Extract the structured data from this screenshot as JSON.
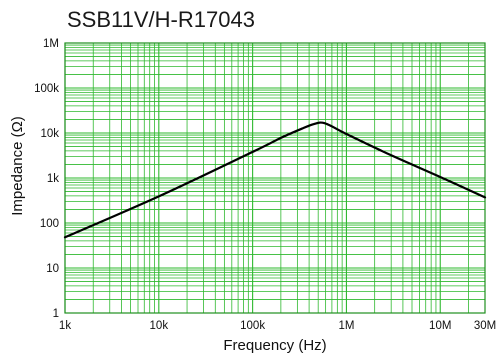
{
  "chart_data": {
    "type": "line",
    "title": "SSB11V/H-R17043",
    "xlabel": "Frequency (Hz)",
    "ylabel": "Impedance (Ω)",
    "x_scale": "log",
    "y_scale": "log",
    "xlim": [
      1000,
      30000000
    ],
    "ylim": [
      1,
      1000000
    ],
    "x_ticks": [
      {
        "value": 1000,
        "label": "1k"
      },
      {
        "value": 10000,
        "label": "10k"
      },
      {
        "value": 100000,
        "label": "100k"
      },
      {
        "value": 1000000,
        "label": "1M"
      },
      {
        "value": 10000000,
        "label": "10M"
      },
      {
        "value": 30000000,
        "label": "30M"
      }
    ],
    "y_ticks": [
      {
        "value": 1,
        "label": "1"
      },
      {
        "value": 10,
        "label": "10"
      },
      {
        "value": 100,
        "label": "100"
      },
      {
        "value": 1000,
        "label": "1k"
      },
      {
        "value": 10000,
        "label": "10k"
      },
      {
        "value": 100000,
        "label": "100k"
      },
      {
        "value": 1000000,
        "label": "1M"
      }
    ],
    "grid": true,
    "colors": {
      "grid": "#2eb82e",
      "line": "#000000",
      "frame": "#1f8f1f"
    },
    "series": [
      {
        "name": "",
        "points": [
          [
            1000,
            48
          ],
          [
            10000,
            390
          ],
          [
            100000,
            3800
          ],
          [
            200000,
            7800
          ],
          [
            350000,
            13000
          ],
          [
            450000,
            15800
          ],
          [
            520000,
            17000
          ],
          [
            580000,
            16600
          ],
          [
            700000,
            14000
          ],
          [
            1000000,
            9500
          ],
          [
            3000000,
            3200
          ],
          [
            10000000,
            1050
          ],
          [
            30000000,
            370
          ]
        ]
      }
    ]
  }
}
